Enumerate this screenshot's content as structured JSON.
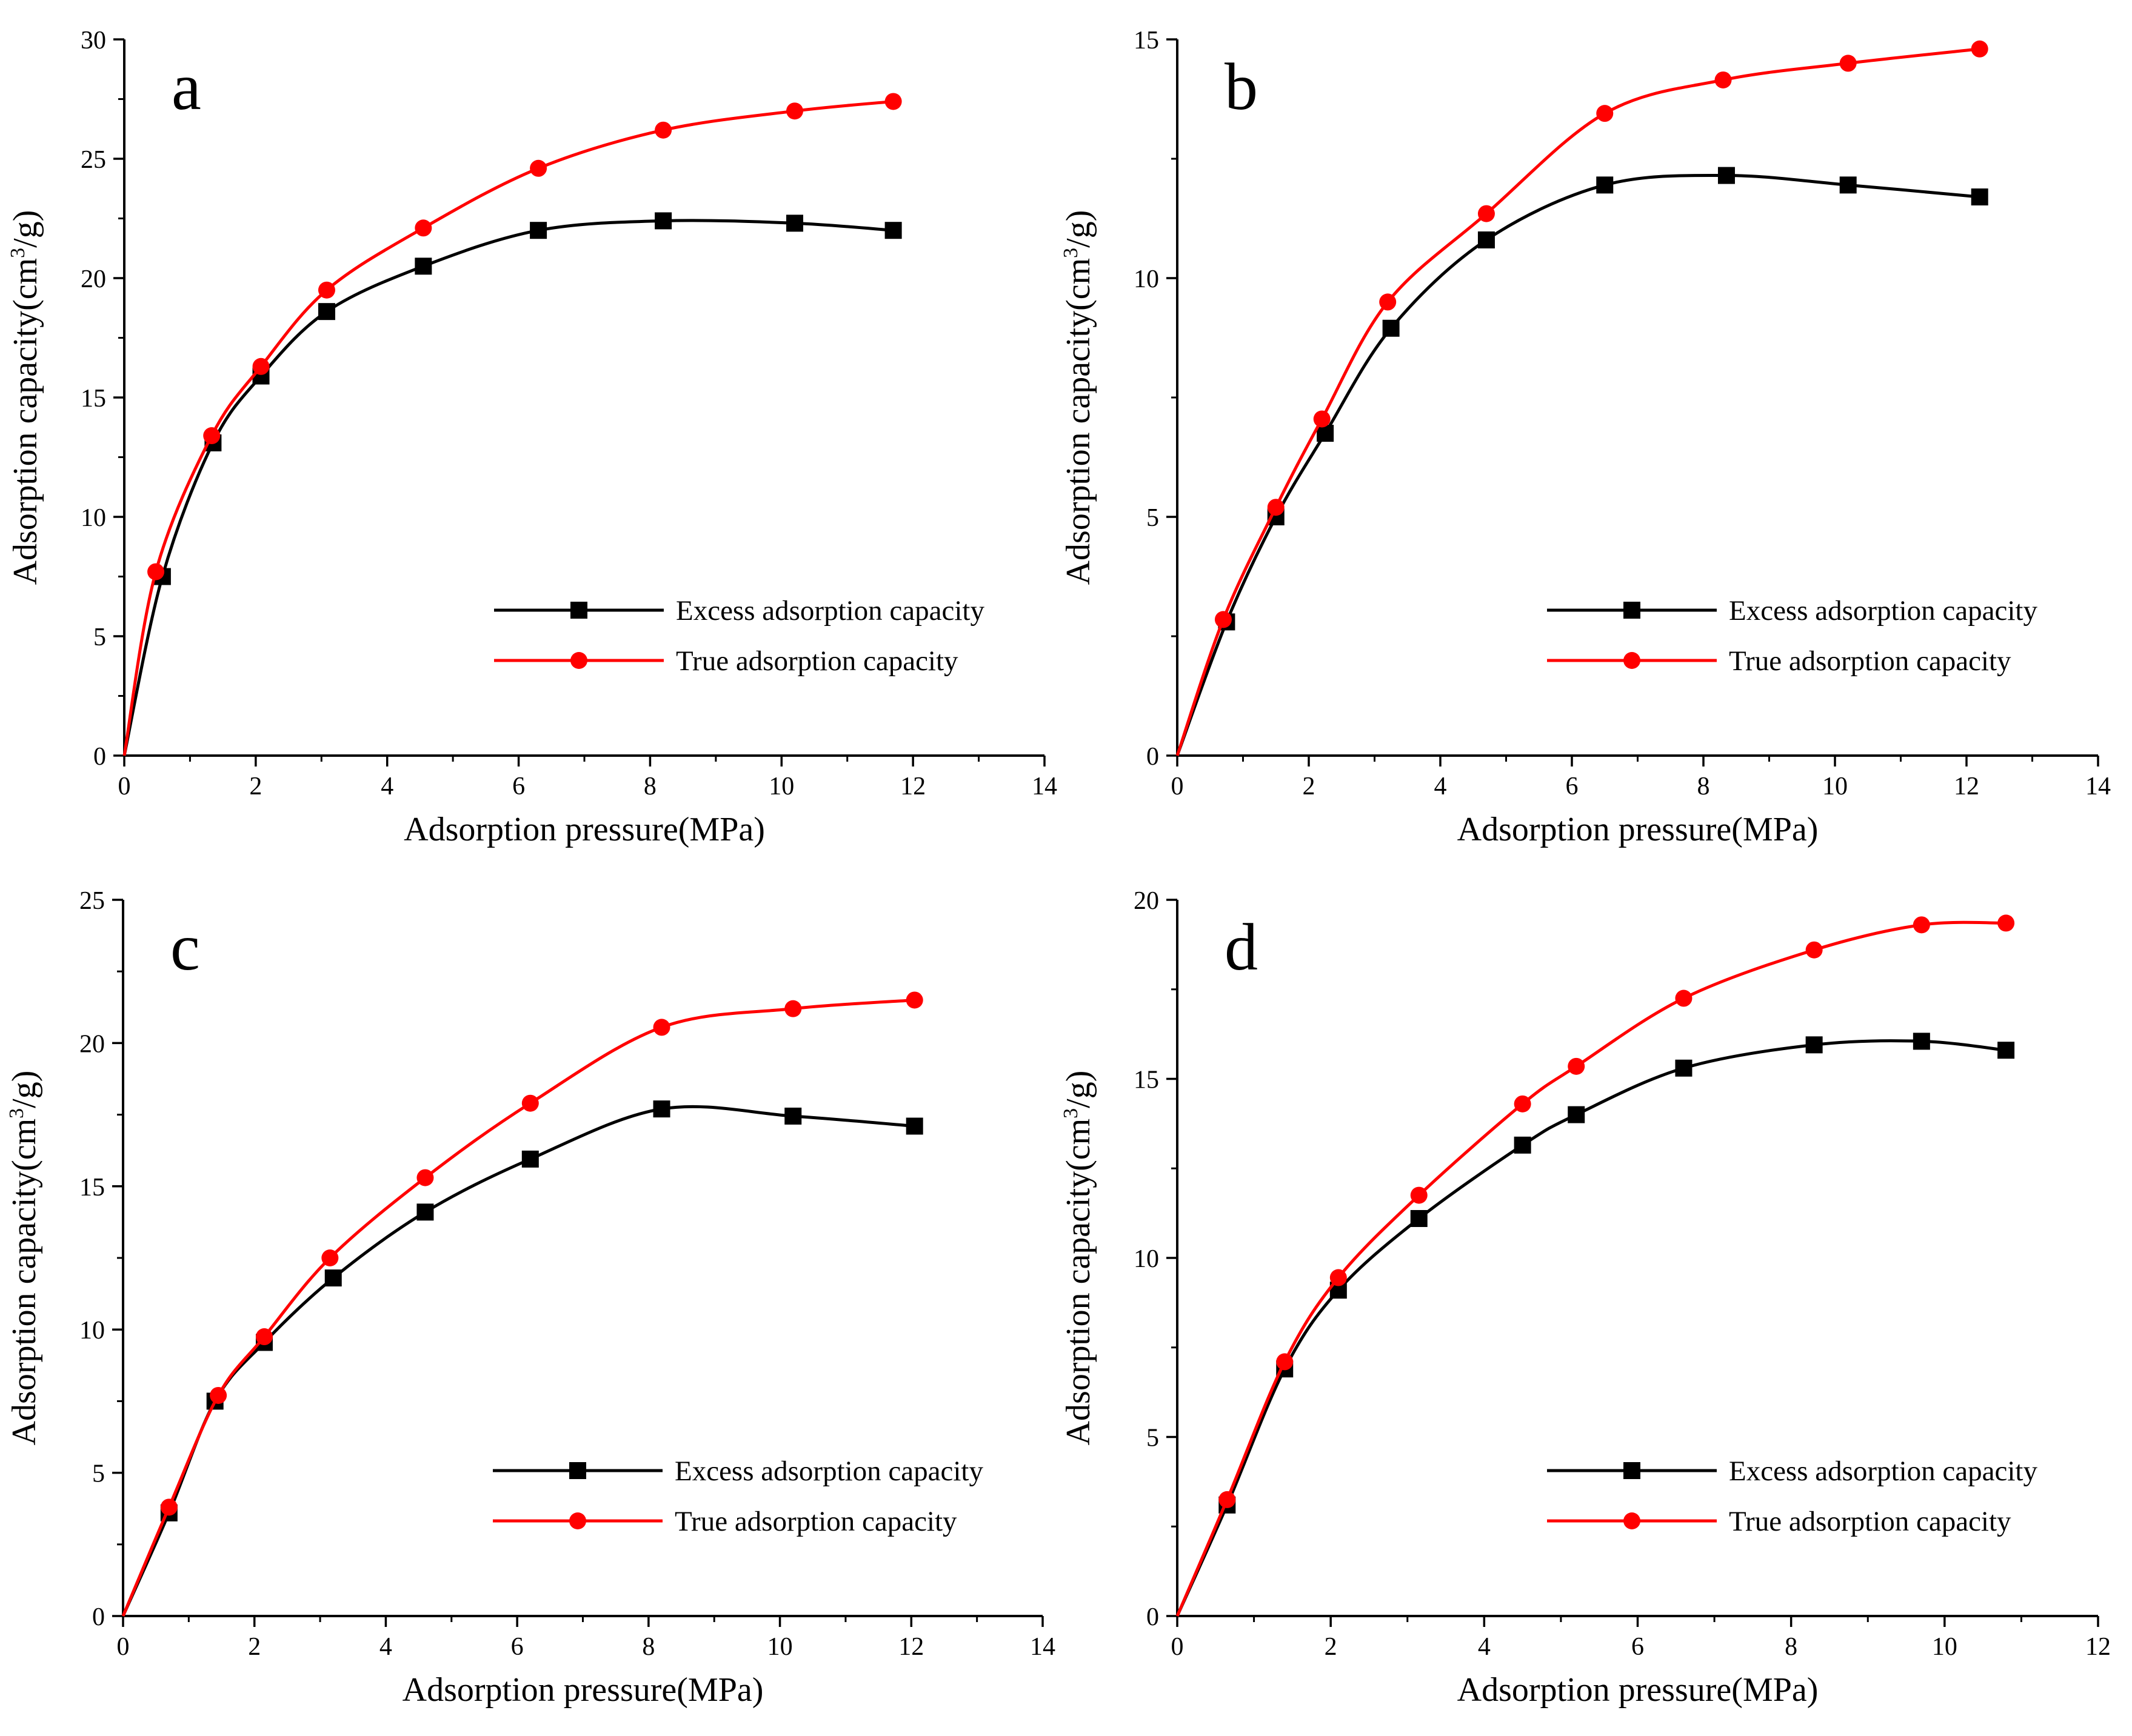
{
  "colors": {
    "excess": "#000000",
    "true": "#ff0000",
    "axis": "#000000"
  },
  "chart_data": [
    {
      "panel": "a",
      "type": "line",
      "xlabel": "Adsorption pressure(MPa)",
      "ylabel_main": "Adsorption capacity(cm",
      "ylabel_sup": "3",
      "ylabel_tail": "/g)",
      "xlim": [
        0,
        14
      ],
      "ylim": [
        0,
        30
      ],
      "xticks": [
        0,
        2,
        4,
        6,
        8,
        10,
        12,
        14
      ],
      "yticks": [
        0,
        5,
        10,
        15,
        20,
        25,
        30
      ],
      "legend_position": "lower-right",
      "series": [
        {
          "name": "Excess adsorption capacity",
          "color": "#000000",
          "marker": "square",
          "x": [
            0.58,
            1.35,
            2.08,
            3.08,
            4.55,
            6.3,
            8.2,
            10.2,
            11.7
          ],
          "y": [
            7.5,
            13.1,
            15.9,
            18.6,
            20.5,
            22.0,
            22.4,
            22.3,
            22.0
          ]
        },
        {
          "name": "True adsorption capacity",
          "color": "#ff0000",
          "marker": "circle",
          "x": [
            0.48,
            1.33,
            2.08,
            3.08,
            4.55,
            6.3,
            8.2,
            10.2,
            11.7
          ],
          "y": [
            7.7,
            13.4,
            16.3,
            19.5,
            22.1,
            24.6,
            26.2,
            27.0,
            27.4
          ]
        }
      ]
    },
    {
      "panel": "b",
      "type": "line",
      "xlabel": "Adsorption pressure(MPa)",
      "ylabel_main": "Adsorption capacity(cm",
      "ylabel_sup": "3",
      "ylabel_tail": "/g)",
      "xlim": [
        0,
        14
      ],
      "ylim": [
        0,
        15
      ],
      "xticks": [
        0,
        2,
        4,
        6,
        8,
        10,
        12,
        14
      ],
      "yticks": [
        0,
        5,
        10,
        15
      ],
      "legend_position": "lower-right",
      "series": [
        {
          "name": "Excess adsorption capacity",
          "color": "#000000",
          "marker": "square",
          "x": [
            0.75,
            1.5,
            2.25,
            3.25,
            4.7,
            6.5,
            8.35,
            10.2,
            12.2
          ],
          "y": [
            2.8,
            5.0,
            6.75,
            8.95,
            10.8,
            11.95,
            12.15,
            11.95,
            11.7
          ]
        },
        {
          "name": "True adsorption capacity",
          "color": "#ff0000",
          "marker": "circle",
          "x": [
            0.7,
            1.5,
            2.2,
            3.2,
            4.7,
            6.5,
            8.3,
            10.2,
            12.2
          ],
          "y": [
            2.85,
            5.2,
            7.05,
            9.5,
            11.35,
            13.45,
            14.15,
            14.5,
            14.8
          ]
        }
      ]
    },
    {
      "panel": "c",
      "type": "line",
      "xlabel": "Adsorption pressure(MPa)",
      "ylabel_main": "Adsorption capacity(cm",
      "ylabel_sup": "3",
      "ylabel_tail": "/g)",
      "xlim": [
        0,
        14
      ],
      "ylim": [
        0,
        25
      ],
      "xticks": [
        0,
        2,
        4,
        6,
        8,
        10,
        12,
        14
      ],
      "yticks": [
        0,
        5,
        10,
        15,
        20,
        25
      ],
      "legend_position": "lower-right",
      "series": [
        {
          "name": "Excess adsorption capacity",
          "color": "#000000",
          "marker": "square",
          "x": [
            0.7,
            1.4,
            2.15,
            3.2,
            4.6,
            6.2,
            8.2,
            10.2,
            12.05
          ],
          "y": [
            3.6,
            7.5,
            9.55,
            11.8,
            14.1,
            15.95,
            17.7,
            17.45,
            17.1
          ]
        },
        {
          "name": "True adsorption capacity",
          "color": "#ff0000",
          "marker": "circle",
          "x": [
            0.7,
            1.45,
            2.15,
            3.15,
            4.6,
            6.2,
            8.2,
            10.2,
            12.05
          ],
          "y": [
            3.8,
            7.7,
            9.75,
            12.5,
            15.3,
            17.9,
            20.55,
            21.2,
            21.5
          ]
        }
      ]
    },
    {
      "panel": "d",
      "type": "line",
      "xlabel": "Adsorption pressure(MPa)",
      "ylabel_main": "Adsorption capacity(cm",
      "ylabel_sup": "3",
      "ylabel_tail": "/g)",
      "xlim": [
        0,
        12
      ],
      "ylim": [
        0,
        20
      ],
      "xticks": [
        0,
        2,
        4,
        6,
        8,
        10,
        12
      ],
      "yticks": [
        0,
        5,
        10,
        15,
        20
      ],
      "legend_position": "lower-right",
      "series": [
        {
          "name": "Excess adsorption capacity",
          "color": "#000000",
          "marker": "square",
          "x": [
            0.65,
            1.4,
            2.1,
            3.15,
            4.5,
            5.2,
            6.6,
            8.3,
            9.7,
            10.8
          ],
          "y": [
            3.1,
            6.9,
            9.1,
            11.1,
            13.15,
            14.0,
            15.3,
            15.95,
            16.05,
            15.8
          ]
        },
        {
          "name": "True adsorption capacity",
          "color": "#ff0000",
          "marker": "circle",
          "x": [
            0.65,
            1.4,
            2.1,
            3.15,
            4.5,
            5.2,
            6.6,
            8.3,
            9.7,
            10.8
          ],
          "y": [
            3.25,
            7.1,
            9.45,
            11.75,
            14.3,
            15.35,
            17.25,
            18.6,
            19.3,
            19.35
          ]
        }
      ]
    }
  ]
}
